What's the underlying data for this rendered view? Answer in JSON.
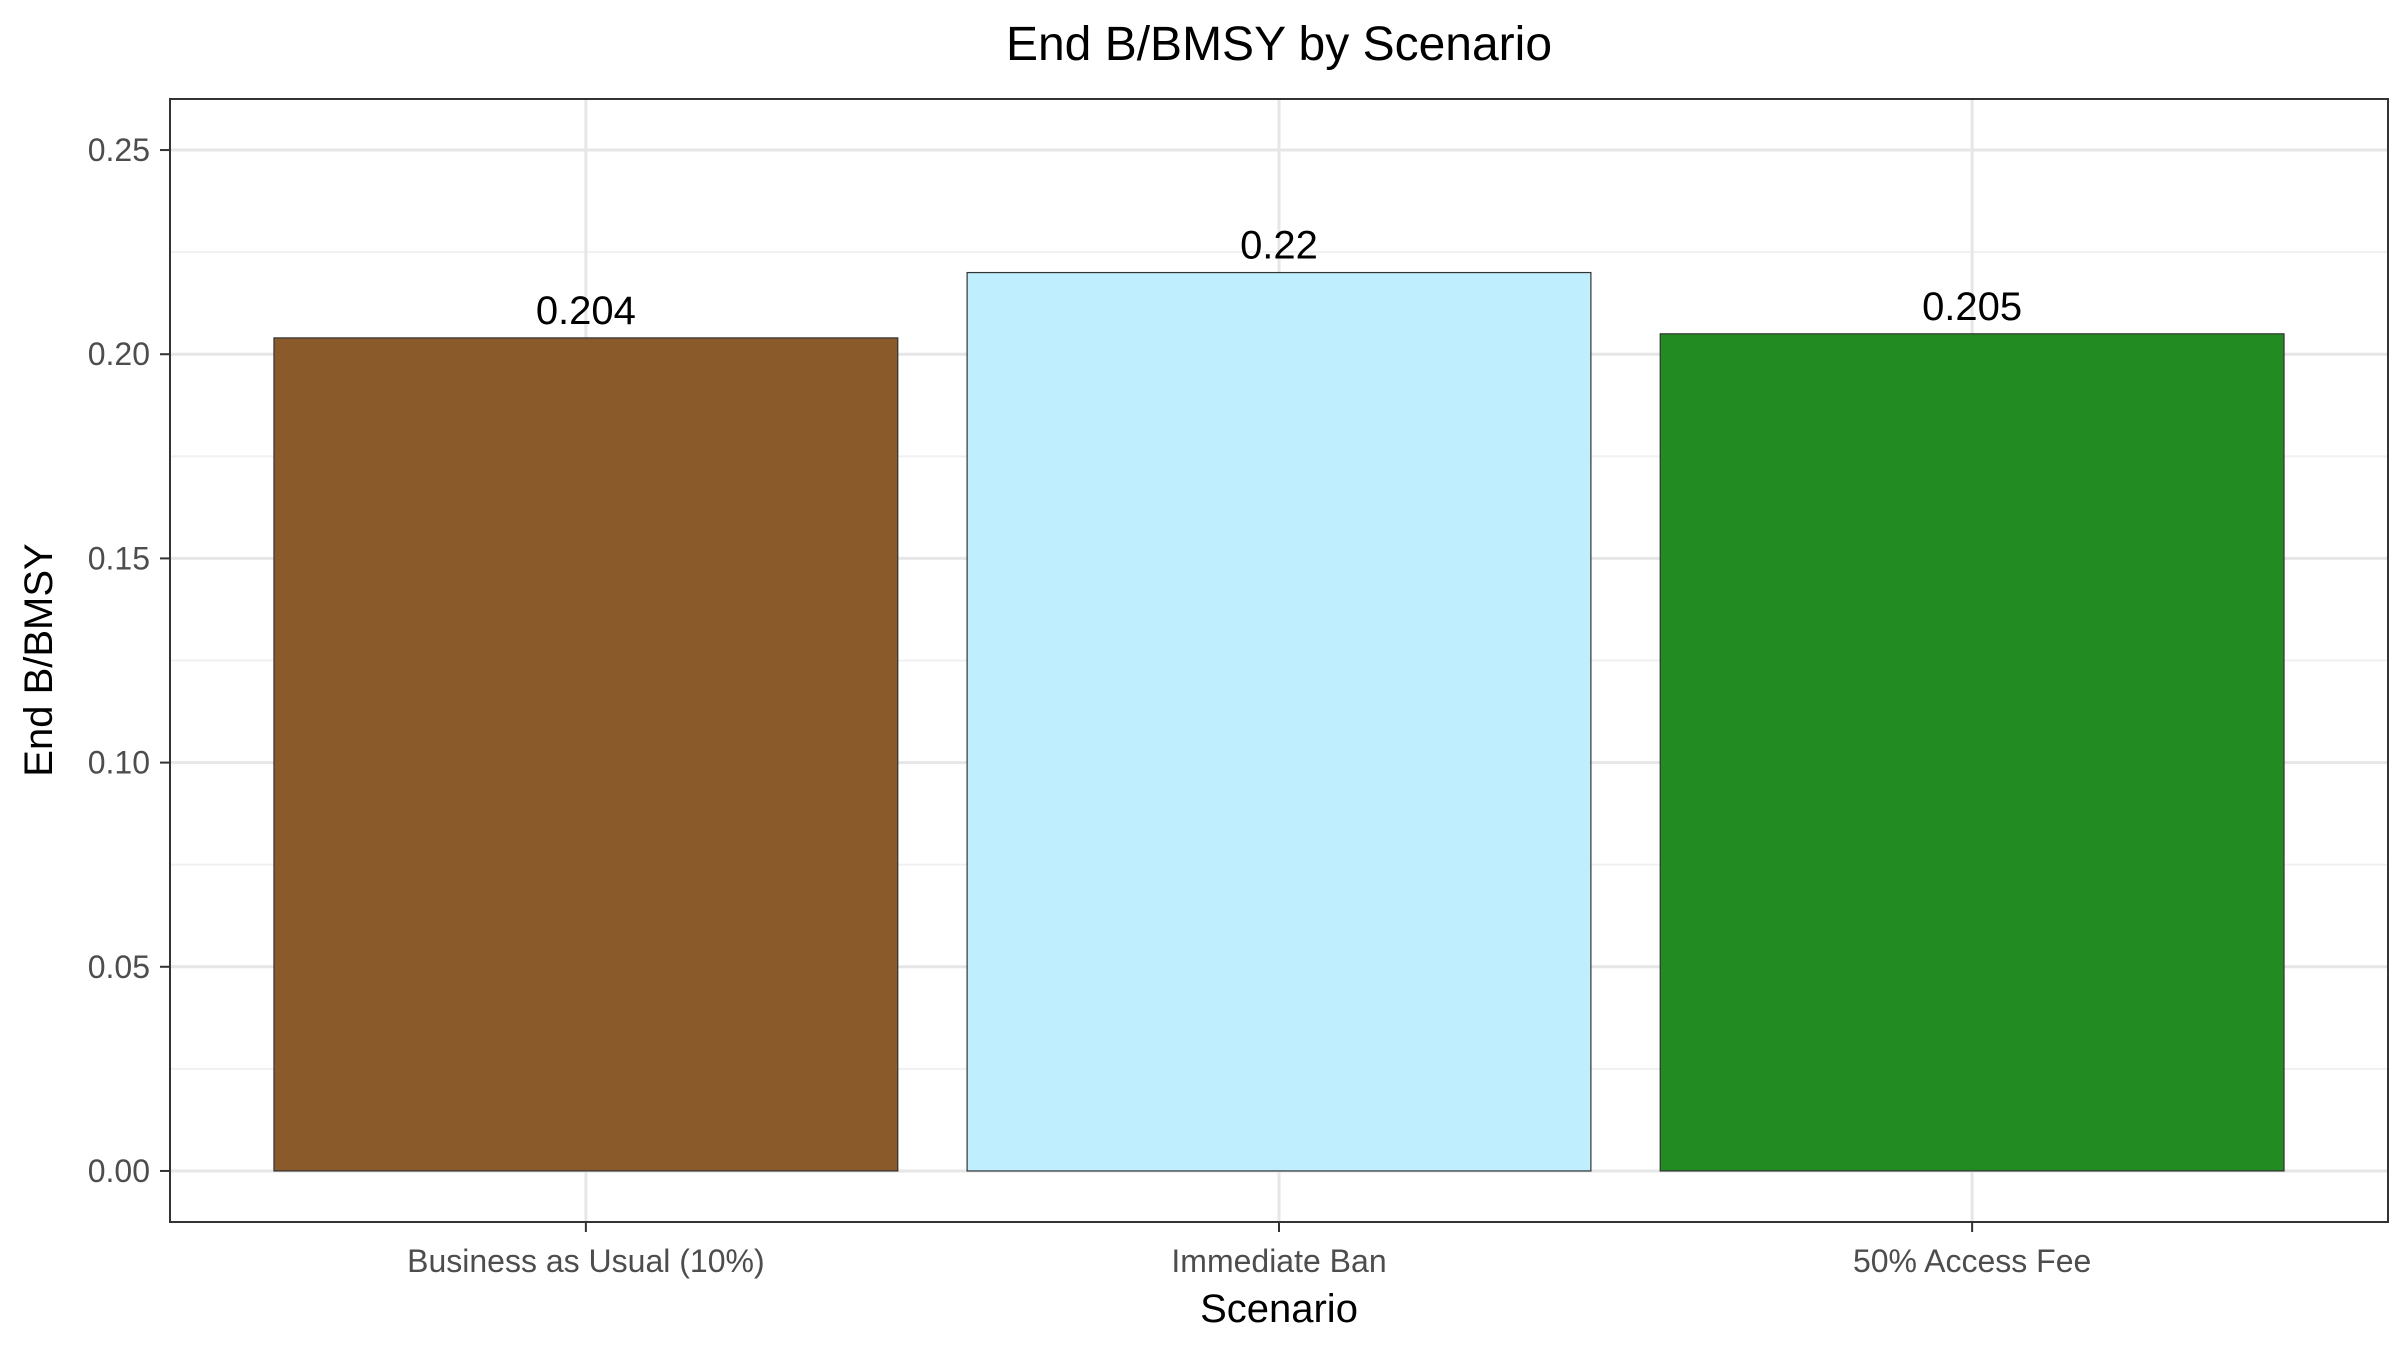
{
  "chart_data": {
    "type": "bar",
    "title": "End B/BMSY by Scenario",
    "xlabel": "Scenario",
    "ylabel": "End B/BMSY",
    "categories": [
      "Business as Usual (10%)",
      "Immediate Ban",
      "50% Access Fee"
    ],
    "values": [
      0.204,
      0.22,
      0.205
    ],
    "value_labels": [
      "0.204",
      "0.22",
      "0.205"
    ],
    "colors": [
      "#8B5A2B",
      "#BFEFFF",
      "#228B22"
    ],
    "ylim": [
      -0.0125,
      0.2625
    ],
    "yticks": [
      0,
      0.05,
      0.1,
      0.15,
      0.2,
      0.25
    ],
    "ytick_labels": [
      "0.00",
      "0.05",
      "0.10",
      "0.15",
      "0.20",
      "0.25"
    ],
    "grid": true,
    "legend": "none"
  }
}
